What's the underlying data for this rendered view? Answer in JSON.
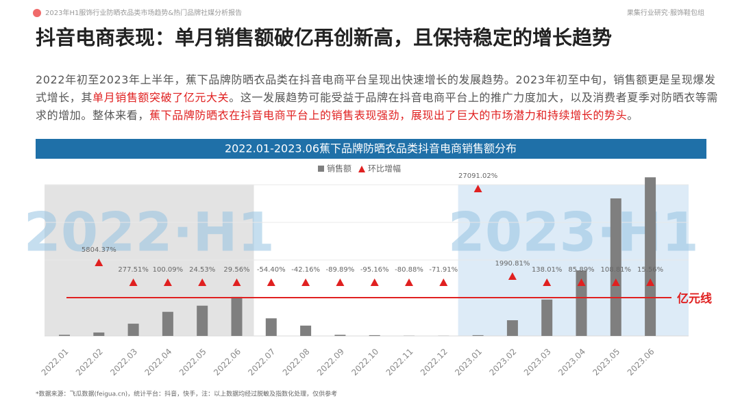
{
  "header": {
    "report": "2023年H1服饰行业防晒衣品类市场趋势&热门品牌社媒分析报告",
    "org": "果集行业研究·服饰鞋包组"
  },
  "title": "抖音电商表现：单月销售额破亿再创新高，且保持稳定的增长趋势",
  "paragraph": [
    {
      "text": "2022年初至2023年上半年，蕉下品牌防晒衣品类在抖音电商平台呈现出快速增长的发展趋势。2023年初至中旬，销售额更是呈现爆发式增长，其",
      "emphasis": false
    },
    {
      "text": "单月销售额突破了亿元大关",
      "emphasis": true
    },
    {
      "text": "。这一发展趋势可能受益于品牌在抖音电商平台上的推广力度加大，以及消费者夏季对防晒衣等需求的增加。整体来看，",
      "emphasis": false
    },
    {
      "text": "蕉下品牌防晒衣在抖音电商平台上的销售表现强劲，展现出了巨大的市场潜力和持续增长的势头",
      "emphasis": true
    },
    {
      "text": "。",
      "emphasis": false
    }
  ],
  "chart_data": {
    "type": "bar",
    "title": "2022.01-2023.06蕉下品牌防晒衣品类抖音电商销售额分布",
    "categories": [
      "2022.01",
      "2022.02",
      "2022.03",
      "2022.04",
      "2022.05",
      "2022.06",
      "2022.07",
      "2022.08",
      "2022.09",
      "2022.10",
      "2022.11",
      "2022.12",
      "2023.01",
      "2023.02",
      "2023.03",
      "2023.04",
      "2023.05",
      "2023.06"
    ],
    "series": [
      {
        "name": "销售额",
        "color": "#7f7f7f",
        "type": "bar",
        "values": [
          0.03,
          0.09,
          0.32,
          0.63,
          0.79,
          1.02,
          0.46,
          0.27,
          0.03,
          0.02,
          0.005,
          0.004,
          0.02,
          0.41,
          0.95,
          1.71,
          3.59,
          4.14
        ]
      },
      {
        "name": "环比增幅",
        "color": "#e02020",
        "type": "triangle",
        "values": [
          null,
          5804.37,
          277.51,
          100.09,
          24.53,
          29.56,
          -54.4,
          -42.16,
          -89.89,
          -95.16,
          -80.88,
          -71.91,
          27091.02,
          1990.81,
          138.01,
          85.89,
          108.81,
          15.56
        ],
        "value_labels": [
          null,
          "5804.37%",
          "277.51%",
          "100.09%",
          "24.53%",
          "29.56%",
          "-54.40%",
          "-42.16%",
          "-89.89%",
          "-95.16%",
          "-80.88%",
          "-71.91%",
          "27091.02%",
          "1990.81%",
          "138.01%",
          "85.89%",
          "108.81%",
          "15.56%"
        ]
      }
    ],
    "ylim": [
      0,
      4.5
    ],
    "reference_line": {
      "value": 1,
      "label": "亿元线",
      "color": "#e02020"
    },
    "regions": [
      {
        "label": "2022·H1",
        "start": "2022.01",
        "end": "2022.06",
        "color": "#e3e3e3"
      },
      {
        "label": "2023·H1",
        "start": "2023.01",
        "end": "2023.06",
        "color": "#ddebf7"
      }
    ]
  },
  "source": "*数据来源：飞瓜数据(feigua.cn)，统计平台：抖音，快手，注：以上数据均经过脱敏及指数化处理，仅供参考"
}
